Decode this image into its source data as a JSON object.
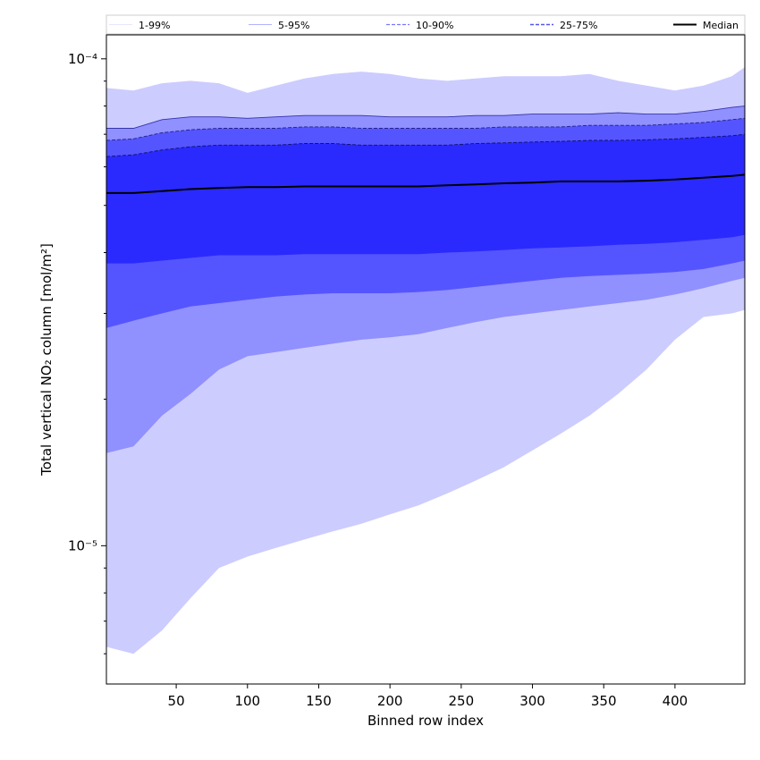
{
  "chart_data": {
    "type": "area",
    "title": "",
    "xlabel": "Binned row index",
    "ylabel": "Total vertical NO₂ column [mol/m²]",
    "xlim": [
      1,
      449
    ],
    "ylim": [
      5.2e-06,
      0.000112
    ],
    "yscale": "log",
    "grid": false,
    "legend_position": "top (strip above plot)",
    "x_ticks": [
      50,
      100,
      150,
      200,
      250,
      300,
      350,
      400
    ],
    "x_tick_labels": [
      "50",
      "100",
      "150",
      "200",
      "250",
      "300",
      "350",
      "400"
    ],
    "y_ticks": [
      1e-05,
      0.0001
    ],
    "y_tick_labels": [
      "10⁻⁵",
      "10⁻⁴"
    ],
    "legend": [
      {
        "label": "1-99%",
        "color": "#ccccff",
        "style": "solid-thin"
      },
      {
        "label": "5-95%",
        "color": "#9999ff",
        "style": "solid-thin"
      },
      {
        "label": "10-90%",
        "color": "#7777ff",
        "style": "dashed"
      },
      {
        "label": "25-75%",
        "color": "#5555ee",
        "style": "dashed"
      },
      {
        "label": "Median",
        "color": "#000000",
        "style": "solid-thick"
      }
    ],
    "x": [
      1,
      20,
      40,
      60,
      80,
      100,
      120,
      140,
      160,
      180,
      200,
      220,
      240,
      260,
      280,
      300,
      320,
      340,
      360,
      380,
      400,
      420,
      440,
      449
    ],
    "bands": [
      {
        "name": "1-99%",
        "color": "#ccccff",
        "lower": [
          6.2e-06,
          6e-06,
          6.7e-06,
          7.8e-06,
          9e-06,
          9.5e-06,
          9.9e-06,
          1.03e-05,
          1.07e-05,
          1.11e-05,
          1.16e-05,
          1.21e-05,
          1.28e-05,
          1.36e-05,
          1.45e-05,
          1.57e-05,
          1.7e-05,
          1.85e-05,
          2.05e-05,
          2.3e-05,
          2.65e-05,
          2.95e-05,
          3e-05,
          3.05e-05
        ],
        "upper": [
          8.7e-05,
          8.6e-05,
          8.9e-05,
          9e-05,
          8.9e-05,
          8.5e-05,
          8.8e-05,
          9.1e-05,
          9.3e-05,
          9.4e-05,
          9.3e-05,
          9.1e-05,
          9e-05,
          9.1e-05,
          9.2e-05,
          9.2e-05,
          9.2e-05,
          9.3e-05,
          9e-05,
          8.8e-05,
          8.6e-05,
          8.8e-05,
          9.2e-05,
          9.6e-05
        ]
      },
      {
        "name": "5-95%",
        "color": "#9090ff",
        "lower": [
          1.55e-05,
          1.6e-05,
          1.85e-05,
          2.05e-05,
          2.3e-05,
          2.45e-05,
          2.5e-05,
          2.55e-05,
          2.6e-05,
          2.65e-05,
          2.68e-05,
          2.72e-05,
          2.8e-05,
          2.88e-05,
          2.95e-05,
          3e-05,
          3.05e-05,
          3.1e-05,
          3.15e-05,
          3.2e-05,
          3.28e-05,
          3.38e-05,
          3.5e-05,
          3.55e-05
        ],
        "upper": [
          7.2e-05,
          7.2e-05,
          7.5e-05,
          7.6e-05,
          7.6e-05,
          7.55e-05,
          7.6e-05,
          7.65e-05,
          7.65e-05,
          7.65e-05,
          7.6e-05,
          7.6e-05,
          7.6e-05,
          7.65e-05,
          7.65e-05,
          7.7e-05,
          7.7e-05,
          7.7e-05,
          7.75e-05,
          7.7e-05,
          7.7e-05,
          7.8e-05,
          7.95e-05,
          8e-05
        ]
      },
      {
        "name": "10-90%",
        "color": "#5555ff",
        "lower": [
          2.8e-05,
          2.9e-05,
          3e-05,
          3.1e-05,
          3.15e-05,
          3.2e-05,
          3.25e-05,
          3.28e-05,
          3.3e-05,
          3.3e-05,
          3.3e-05,
          3.32e-05,
          3.35e-05,
          3.4e-05,
          3.45e-05,
          3.5e-05,
          3.55e-05,
          3.58e-05,
          3.6e-05,
          3.62e-05,
          3.65e-05,
          3.7e-05,
          3.8e-05,
          3.85e-05
        ],
        "upper": [
          6.8e-05,
          6.85e-05,
          7.05e-05,
          7.15e-05,
          7.2e-05,
          7.2e-05,
          7.2e-05,
          7.25e-05,
          7.25e-05,
          7.2e-05,
          7.2e-05,
          7.2e-05,
          7.2e-05,
          7.2e-05,
          7.25e-05,
          7.25e-05,
          7.25e-05,
          7.3e-05,
          7.3e-05,
          7.3e-05,
          7.35e-05,
          7.4e-05,
          7.5e-05,
          7.55e-05
        ]
      },
      {
        "name": "25-75%",
        "color": "#2a2aff",
        "lower": [
          3.8e-05,
          3.8e-05,
          3.85e-05,
          3.9e-05,
          3.95e-05,
          3.95e-05,
          3.95e-05,
          3.97e-05,
          3.97e-05,
          3.97e-05,
          3.97e-05,
          3.97e-05,
          4e-05,
          4.02e-05,
          4.05e-05,
          4.08e-05,
          4.1e-05,
          4.12e-05,
          4.15e-05,
          4.17e-05,
          4.2e-05,
          4.25e-05,
          4.3e-05,
          4.35e-05
        ],
        "upper": [
          6.3e-05,
          6.35e-05,
          6.5e-05,
          6.6e-05,
          6.65e-05,
          6.65e-05,
          6.65e-05,
          6.7e-05,
          6.7e-05,
          6.65e-05,
          6.65e-05,
          6.65e-05,
          6.65e-05,
          6.7e-05,
          6.72e-05,
          6.75e-05,
          6.77e-05,
          6.8e-05,
          6.8e-05,
          6.82e-05,
          6.85e-05,
          6.9e-05,
          6.95e-05,
          7e-05
        ]
      }
    ],
    "median": [
      5.3e-05,
      5.3e-05,
      5.35e-05,
      5.4e-05,
      5.43e-05,
      5.45e-05,
      5.45e-05,
      5.47e-05,
      5.47e-05,
      5.47e-05,
      5.47e-05,
      5.47e-05,
      5.5e-05,
      5.52e-05,
      5.55e-05,
      5.57e-05,
      5.6e-05,
      5.6e-05,
      5.6e-05,
      5.62e-05,
      5.65e-05,
      5.7e-05,
      5.75e-05,
      5.78e-05
    ]
  }
}
